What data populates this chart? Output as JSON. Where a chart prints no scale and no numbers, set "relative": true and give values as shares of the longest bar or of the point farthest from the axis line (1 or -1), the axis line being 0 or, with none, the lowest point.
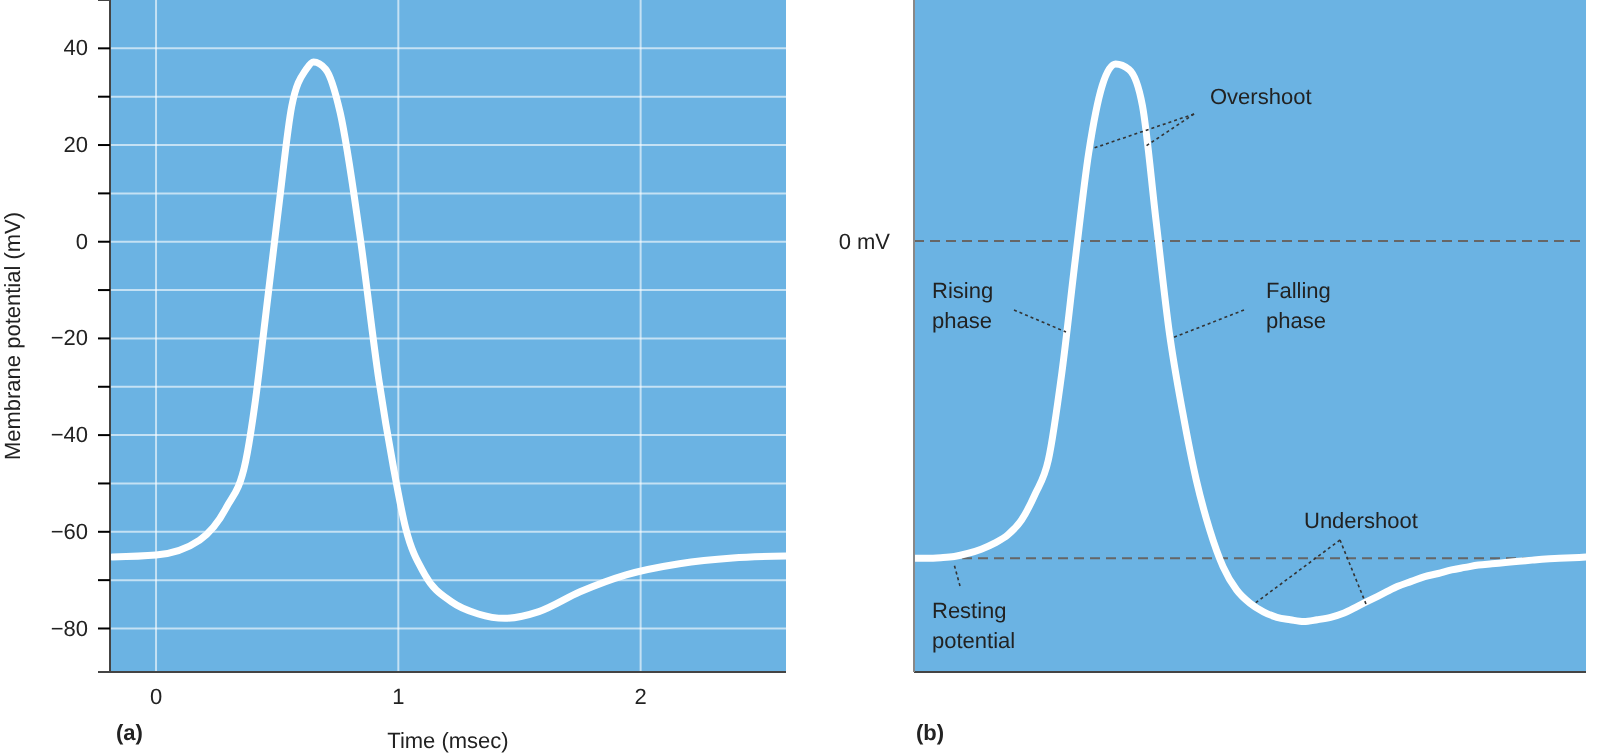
{
  "chart_data": [
    {
      "type": "line",
      "xlabel": "Time (msec)",
      "ylabel": "Membrane potential (mV)",
      "annotations": [
        "(a)"
      ],
      "grid": true,
      "xlim": [
        -0.19,
        2.6
      ],
      "ylim": [
        -89,
        50
      ],
      "xticks": [
        0,
        1,
        2
      ],
      "yticks": [
        -80,
        {
          "value": -70,
          "label": null
        },
        -60,
        {
          "value": -50,
          "label": null
        },
        -40,
        {
          "value": -30,
          "label": null
        },
        -20,
        {
          "value": -10,
          "label": null
        },
        0,
        {
          "value": 10,
          "label": null
        },
        20,
        {
          "value": 30,
          "label": null
        },
        40
      ],
      "series": [
        {
          "color": "#ffffff",
          "x": [
            -0.18,
            0,
            0.18,
            0.29,
            0.37,
            0.41,
            0.45,
            0.51,
            0.56,
            0.62,
            0.65,
            0.7,
            0.76,
            0.84,
            0.92,
            0.98,
            1.03,
            1.11,
            1.22,
            1.33,
            1.44,
            1.58,
            1.75,
            1.94,
            2.16,
            2.38,
            2.6
          ],
          "values": [
            -65.2,
            -64.8,
            -61.7,
            -55,
            -45.4,
            -32.9,
            -16.3,
            8.7,
            28,
            35.7,
            37.2,
            35.7,
            26.7,
            1.8,
            -28.7,
            -46.7,
            -59.2,
            -68.9,
            -74.5,
            -77,
            -77.9,
            -76.5,
            -72.4,
            -68.9,
            -66.6,
            -65.4,
            -65
          ]
        }
      ]
    },
    {
      "type": "line",
      "relative": true,
      "annotations": [
        "Overshoot",
        "Rising phase",
        "Falling phase",
        "Undershoot",
        "Resting potential",
        "(b)"
      ],
      "categories": [
        null,
        null,
        null,
        null,
        null,
        null,
        null,
        null,
        null,
        null,
        null,
        null,
        null,
        null,
        null,
        null,
        null,
        null,
        null,
        null,
        null,
        null,
        null,
        null,
        null,
        null,
        null,
        null,
        null,
        null,
        null,
        null,
        null,
        null,
        null,
        null,
        null,
        null,
        null,
        null,
        null,
        null,
        null,
        null,
        null,
        null,
        null,
        null,
        null,
        null,
        null
      ],
      "ref_lines": [
        {
          "axis": "y",
          "value": 0.709,
          "label": "0 mV",
          "color": "#666666",
          "line_style": "dashed"
        },
        {
          "axis": "y",
          "value": 0.187,
          "label": null,
          "color": "#666666",
          "line_style": "dashed"
        }
      ],
      "series": [
        {
          "color": "#ffffff",
          "values": [
            0.187,
            0.187,
            0.188,
            0.19,
            0.195,
            0.202,
            0.212,
            0.226,
            0.25,
            0.292,
            0.349,
            0.492,
            0.678,
            0.854,
            0.964,
            1,
            0.991,
            0.931,
            0.744,
            0.558,
            0.426,
            0.316,
            0.234,
            0.173,
            0.135,
            0.113,
            0.099,
            0.09,
            0.086,
            0.083,
            0.086,
            0.09,
            0.097,
            0.108,
            0.119,
            0.13,
            0.141,
            0.149,
            0.157,
            0.162,
            0.168,
            0.172,
            0.176,
            0.178,
            0.18,
            0.182,
            0.184,
            0.186,
            0.187,
            0.188,
            0.189
          ]
        }
      ]
    }
  ]
}
